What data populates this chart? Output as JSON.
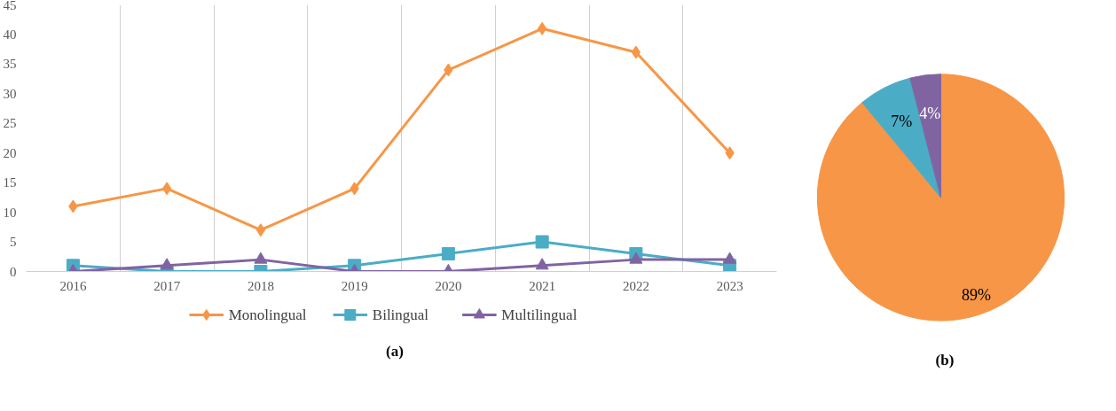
{
  "chart_data": [
    {
      "type": "line",
      "categories": [
        "2016",
        "2017",
        "2018",
        "2019",
        "2020",
        "2021",
        "2022",
        "2023"
      ],
      "series": [
        {
          "name": "Monolingual",
          "color": "#f79646",
          "marker": "diamond",
          "values": [
            11,
            14,
            7,
            14,
            34,
            41,
            37,
            20
          ]
        },
        {
          "name": "Bilingual",
          "color": "#4bacc6",
          "marker": "square",
          "values": [
            1,
            0,
            0,
            1,
            3,
            5,
            3,
            1
          ]
        },
        {
          "name": "Multilingual",
          "color": "#8064a2",
          "marker": "triangle",
          "values": [
            0,
            1,
            2,
            0,
            0,
            1,
            2,
            2
          ]
        }
      ],
      "ylim": [
        0,
        45
      ],
      "yticks": [
        0,
        5,
        10,
        15,
        20,
        25,
        30,
        35,
        40,
        45
      ],
      "grid": "x",
      "legend": "bottom",
      "line_style": "solid",
      "annotations": [
        "(a)"
      ]
    },
    {
      "type": "pie",
      "categories": [
        null,
        null,
        null
      ],
      "values": [
        89,
        7,
        4
      ],
      "colors": [
        "#f79646",
        "#4bacc6",
        "#8064a2"
      ],
      "value_labels": [
        "89%",
        "7%",
        "4%"
      ],
      "data_labels": true,
      "annotations": [
        "(b)"
      ]
    }
  ]
}
